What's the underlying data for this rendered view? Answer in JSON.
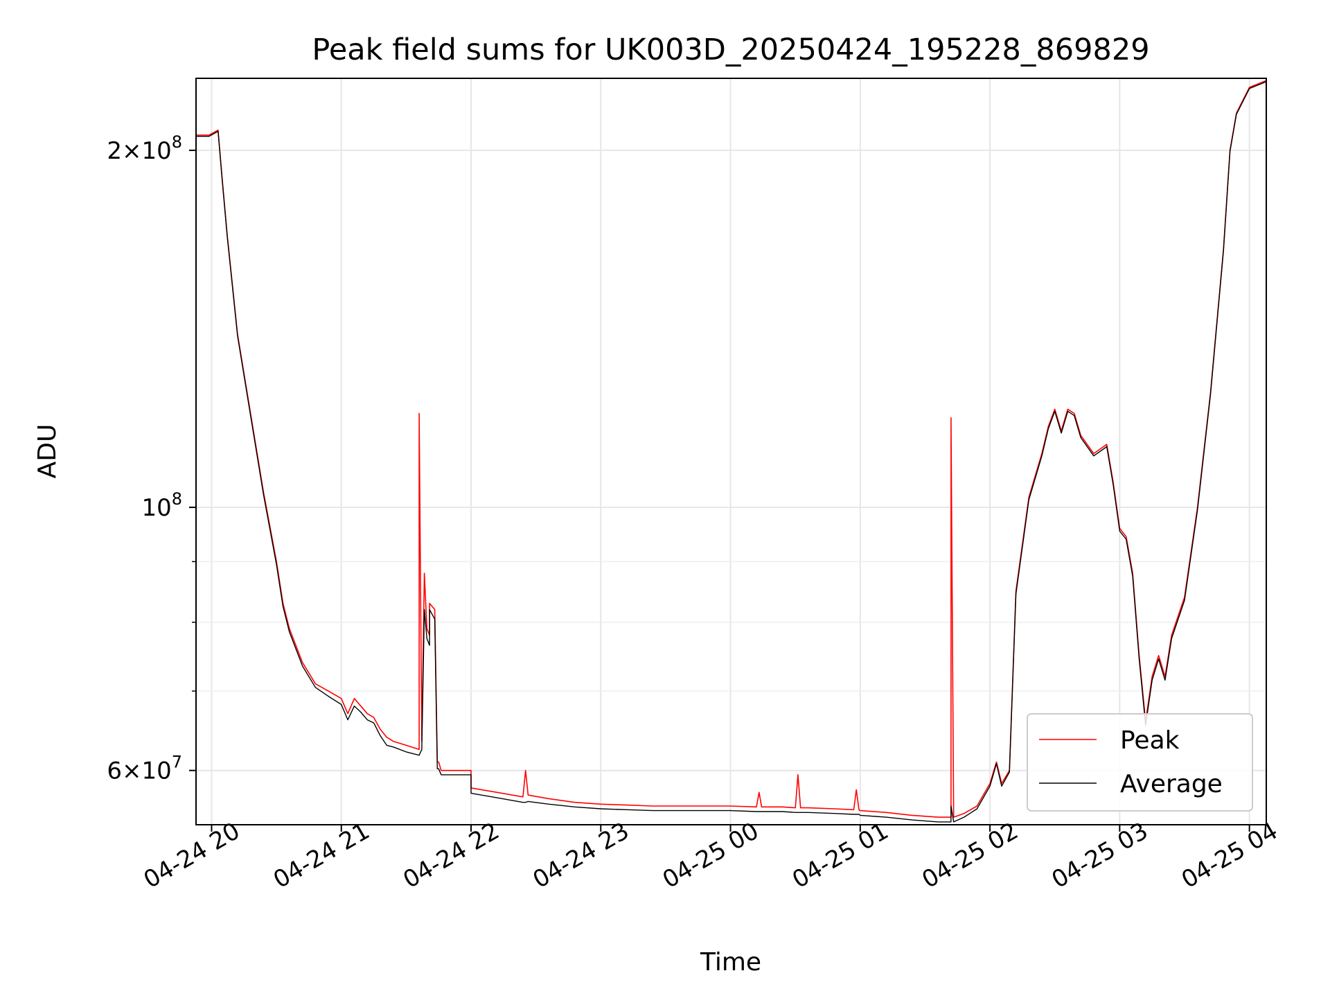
{
  "chart_data": {
    "type": "line",
    "title": "Peak field sums for UK003D_20250424_195228_869829",
    "xlabel": "Time",
    "ylabel": "ADU",
    "y_scale": "log",
    "x_unit": "hours",
    "xlim": [
      19.88,
      28.13
    ],
    "ylim": [
      54000000,
      230000000
    ],
    "grid": true,
    "legend_position": "lower right",
    "x_ticks": [
      {
        "value": 20,
        "label": "04-24 20"
      },
      {
        "value": 21,
        "label": "04-24 21"
      },
      {
        "value": 22,
        "label": "04-24 22"
      },
      {
        "value": 23,
        "label": "04-24 23"
      },
      {
        "value": 24,
        "label": "04-25 00"
      },
      {
        "value": 25,
        "label": "04-25 01"
      },
      {
        "value": 26,
        "label": "04-25 02"
      },
      {
        "value": 27,
        "label": "04-25 03"
      },
      {
        "value": 28,
        "label": "04-25 04"
      }
    ],
    "y_ticks": [
      {
        "value": 60000000,
        "base": "6",
        "exp": "7"
      },
      {
        "value": 100000000,
        "base": "",
        "exp": "8"
      },
      {
        "value": 200000000,
        "base": "2",
        "exp": "8"
      }
    ],
    "y_minor_ticks": [
      70000000,
      80000000,
      90000000
    ],
    "series": [
      {
        "name": "Peak",
        "color": "#ff0000",
        "x": [
          19.88,
          19.98,
          20.05,
          20.08,
          20.12,
          20.2,
          20.3,
          20.4,
          20.5,
          20.55,
          20.6,
          20.7,
          20.8,
          20.9,
          21.0,
          21.05,
          21.1,
          21.15,
          21.2,
          21.25,
          21.3,
          21.35,
          21.4,
          21.5,
          21.6,
          21.6,
          21.62,
          21.64,
          21.66,
          21.68,
          21.68,
          21.72,
          21.74,
          21.75,
          21.77,
          21.77,
          21.85,
          21.95,
          22.0,
          22.0,
          22.2,
          22.4,
          22.42,
          22.44,
          22.6,
          22.8,
          23.0,
          23.2,
          23.4,
          23.6,
          23.8,
          24.0,
          24.2,
          24.22,
          24.24,
          24.4,
          24.5,
          24.52,
          24.54,
          24.6,
          24.8,
          24.95,
          24.97,
          24.99,
          25.0,
          25.2,
          25.4,
          25.6,
          25.7,
          25.7,
          25.72,
          25.8,
          25.9,
          26.0,
          26.05,
          26.09,
          26.15,
          26.2,
          26.3,
          26.4,
          26.45,
          26.5,
          26.55,
          26.6,
          26.65,
          26.7,
          26.8,
          26.9,
          26.95,
          27.0,
          27.05,
          27.1,
          27.15,
          27.2,
          27.25,
          27.3,
          27.35,
          27.4,
          27.5,
          27.6,
          27.7,
          27.8,
          27.85,
          27.9,
          28.0,
          28.13
        ],
        "y": [
          206000000,
          206000000,
          208000000,
          190000000,
          170000000,
          140000000,
          120000000,
          103000000,
          90000000,
          83000000,
          79000000,
          74000000,
          71000000,
          70000000,
          69000000,
          67000000,
          69000000,
          68000000,
          67000000,
          66500000,
          65000000,
          64000000,
          63500000,
          63000000,
          62500000,
          120000000,
          63500000,
          88000000,
          79000000,
          78000000,
          83000000,
          82000000,
          61000000,
          61000000,
          60000000,
          60000000,
          60000000,
          60000000,
          60000000,
          58000000,
          57500000,
          57000000,
          60000000,
          57200000,
          56800000,
          56400000,
          56200000,
          56100000,
          56000000,
          56000000,
          56000000,
          56000000,
          55900000,
          57500000,
          55900000,
          55900000,
          55800000,
          59500000,
          55800000,
          55800000,
          55700000,
          55600000,
          57800000,
          55600000,
          55500000,
          55300000,
          55000000,
          54800000,
          54800000,
          119000000,
          54800000,
          55200000,
          56000000,
          58500000,
          61000000,
          58500000,
          60000000,
          85000000,
          102000000,
          111000000,
          117000000,
          121000000,
          116000000,
          121000000,
          120000000,
          115000000,
          111000000,
          113000000,
          105000000,
          96000000,
          94500000,
          88000000,
          75000000,
          66000000,
          72000000,
          75000000,
          72000000,
          78000000,
          84000000,
          100000000,
          125000000,
          165000000,
          200000000,
          215000000,
          226000000,
          229000000
        ]
      },
      {
        "name": "Average",
        "color": "#000000",
        "x": [
          19.88,
          19.98,
          20.05,
          20.08,
          20.12,
          20.2,
          20.3,
          20.4,
          20.5,
          20.55,
          20.6,
          20.7,
          20.8,
          20.9,
          21.0,
          21.05,
          21.1,
          21.15,
          21.2,
          21.25,
          21.3,
          21.35,
          21.4,
          21.5,
          21.6,
          21.6,
          21.62,
          21.64,
          21.66,
          21.68,
          21.68,
          21.72,
          21.74,
          21.75,
          21.77,
          21.77,
          21.85,
          21.95,
          22.0,
          22.0,
          22.2,
          22.4,
          22.42,
          22.44,
          22.6,
          22.8,
          23.0,
          23.2,
          23.4,
          23.6,
          23.8,
          24.0,
          24.2,
          24.22,
          24.24,
          24.4,
          24.5,
          24.52,
          24.54,
          24.6,
          24.8,
          24.95,
          24.97,
          24.99,
          25.0,
          25.2,
          25.4,
          25.6,
          25.7,
          25.7,
          25.72,
          25.8,
          25.9,
          26.0,
          26.05,
          26.09,
          26.15,
          26.2,
          26.3,
          26.4,
          26.45,
          26.5,
          26.55,
          26.6,
          26.65,
          26.7,
          26.8,
          26.9,
          26.95,
          27.0,
          27.05,
          27.1,
          27.15,
          27.2,
          27.25,
          27.3,
          27.35,
          27.4,
          27.5,
          27.6,
          27.7,
          27.8,
          27.85,
          27.9,
          28.0,
          28.13
        ],
        "y": [
          205500000,
          205500000,
          207500000,
          189500000,
          169500000,
          139500000,
          119500000,
          102500000,
          89500000,
          82500000,
          78500000,
          73500000,
          70500000,
          69300000,
          68200000,
          66200000,
          68000000,
          67200000,
          66200000,
          65800000,
          64200000,
          63000000,
          62800000,
          62200000,
          61800000,
          61800000,
          62500000,
          82000000,
          77500000,
          76500000,
          82000000,
          80500000,
          60200000,
          60200000,
          59500000,
          59500000,
          59500000,
          59500000,
          59500000,
          57400000,
          56900000,
          56400000,
          56400000,
          56500000,
          56200000,
          55900000,
          55700000,
          55600000,
          55500000,
          55500000,
          55500000,
          55500000,
          55400000,
          55400000,
          55400000,
          55400000,
          55300000,
          55300000,
          55300000,
          55300000,
          55200000,
          55100000,
          55100000,
          55100000,
          55000000,
          54800000,
          54500000,
          54300000,
          54300000,
          56000000,
          54300000,
          54800000,
          55700000,
          58200000,
          60800000,
          58200000,
          59800000,
          84500000,
          101500000,
          110500000,
          116500000,
          120500000,
          115500000,
          120500000,
          119500000,
          114500000,
          110500000,
          112500000,
          104500000,
          95500000,
          94000000,
          87500000,
          74500000,
          65500000,
          71500000,
          74500000,
          71500000,
          77500000,
          83500000,
          99500000,
          124500000,
          164500000,
          199500000,
          214500000,
          225500000,
          228500000
        ]
      }
    ]
  }
}
